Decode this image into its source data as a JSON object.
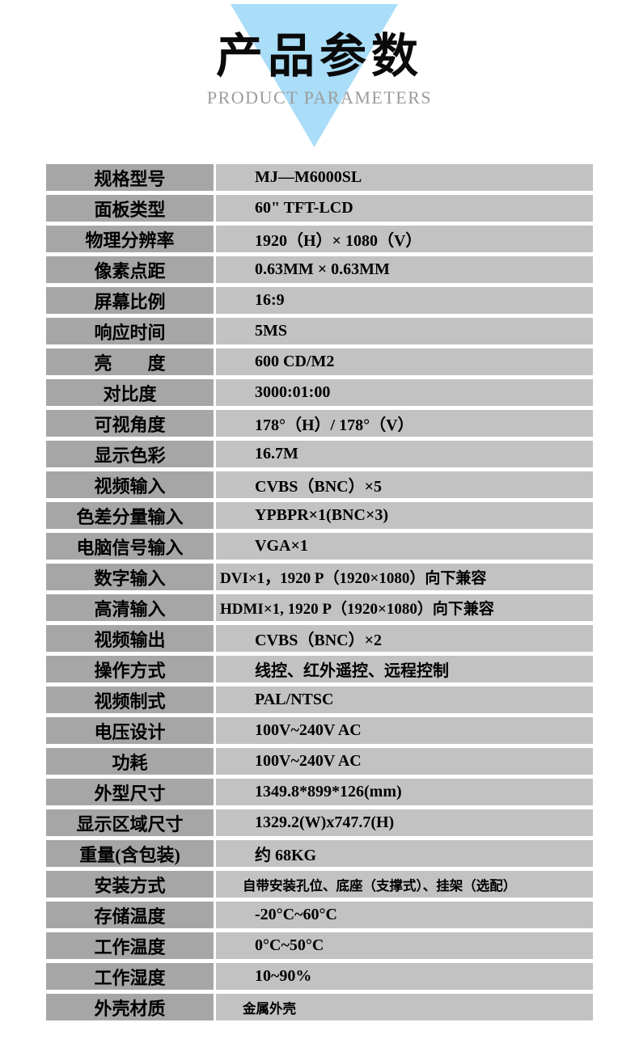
{
  "header": {
    "title": "产品参数",
    "subtitle": "PRODUCT PARAMETERS",
    "triangle_color": "#a9ddf8",
    "title_color": "#0a0a0a",
    "subtitle_color": "#9c9c9c"
  },
  "table": {
    "label_bg_color": "#a6a6a6",
    "value_bg_color": "#c2c2c2",
    "rows": [
      {
        "label": "规格型号",
        "value": "MJ—M6000SL"
      },
      {
        "label": "面板类型",
        "value": "60\" TFT-LCD"
      },
      {
        "label": "物理分辨率",
        "value": "1920（H）× 1080（V）"
      },
      {
        "label": "像素点距",
        "value": "0.63MM × 0.63MM"
      },
      {
        "label": "屏幕比例",
        "value": "16:9"
      },
      {
        "label": "响应时间",
        "value": "5MS"
      },
      {
        "label": "亮　　度",
        "value": "600 CD/M2"
      },
      {
        "label": "对比度",
        "value": "3000:01:00"
      },
      {
        "label": "可视角度",
        "value": "178°（H）/ 178°（V）"
      },
      {
        "label": "显示色彩",
        "value": "16.7M"
      },
      {
        "label": "视频输入",
        "value": "CVBS（BNC）×5"
      },
      {
        "label": "色差分量输入",
        "value": "YPBPR×1(BNC×3)"
      },
      {
        "label": "电脑信号输入",
        "value": "VGA×1"
      },
      {
        "label": "数字输入",
        "value": "DVI×1，1920 P（1920×1080）向下兼容",
        "value_style": "flush"
      },
      {
        "label": "高清输入",
        "value": "HDMI×1, 1920 P（1920×1080）向下兼容",
        "value_style": "flush"
      },
      {
        "label": "视频输出",
        "value": "CVBS（BNC）×2"
      },
      {
        "label": "操作方式",
        "value": "线控、红外遥控、远程控制"
      },
      {
        "label": "视频制式",
        "value": "PAL/NTSC"
      },
      {
        "label": "电压设计",
        "value": "100V~240V AC"
      },
      {
        "label": "功耗",
        "value": "100V~240V AC"
      },
      {
        "label": "外型尺寸",
        "value": "1349.8*899*126(mm)"
      },
      {
        "label": "显示区域尺寸",
        "value": "1329.2(W)x747.7(H)"
      },
      {
        "label": "重量(含包装)",
        "value": "约 68KG"
      },
      {
        "label": "安装方式",
        "value": "自带安装孔位、底座（支撑式）、挂架（选配）",
        "value_style": "small"
      },
      {
        "label": "存储温度",
        "value": "-20°C~60°C"
      },
      {
        "label": "工作温度",
        "value": "0°C~50°C"
      },
      {
        "label": "工作湿度",
        "value": "10~90%"
      },
      {
        "label": "外壳材质",
        "value": "金属外壳",
        "value_style": "small"
      }
    ]
  }
}
